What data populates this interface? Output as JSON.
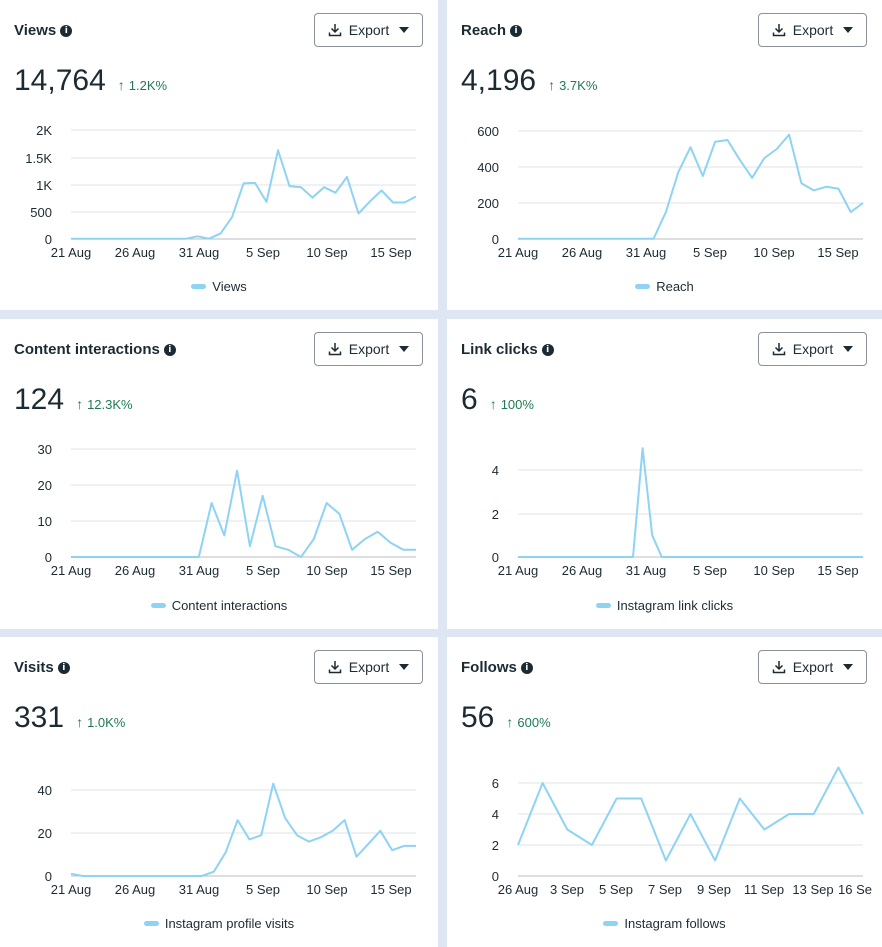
{
  "export_label": "Export",
  "series_color": "#8fd3f4",
  "positive_color": "#1f7a52",
  "cards": [
    {
      "title": "Views",
      "value": "14,764",
      "change": "1.2K%",
      "legend": "Views",
      "chart_data": {
        "type": "line",
        "x_ticks": [
          "21 Aug",
          "26 Aug",
          "31 Aug",
          "5 Sep",
          "10 Sep",
          "15 Sep"
        ],
        "y_ticks": [
          "0",
          "500",
          "1K",
          "1.5K",
          "2K"
        ],
        "ylim": [
          0,
          2000
        ],
        "series": [
          {
            "name": "Views",
            "values": [
              5,
              5,
              5,
              5,
              5,
              5,
              5,
              5,
              5,
              5,
              5,
              50,
              5,
              100,
              400,
              1020,
              1030,
              680,
              1630,
              970,
              950,
              760,
              950,
              850,
              1140,
              470,
              690,
              890,
              670,
              670,
              780
            ]
          }
        ]
      }
    },
    {
      "title": "Reach",
      "value": "4,196",
      "change": "3.7K%",
      "legend": "Reach",
      "chart_data": {
        "type": "line",
        "x_ticks": [
          "21 Aug",
          "26 Aug",
          "31 Aug",
          "5 Sep",
          "10 Sep",
          "15 Sep"
        ],
        "y_ticks": [
          "0",
          "200",
          "400",
          "600"
        ],
        "ylim": [
          0,
          600
        ],
        "series": [
          {
            "name": "Reach",
            "values": [
              1,
              1,
              1,
              1,
              1,
              1,
              1,
              1,
              1,
              1,
              1,
              1,
              150,
              370,
              510,
              350,
              540,
              550,
              440,
              340,
              450,
              500,
              580,
              310,
              270,
              290,
              280,
              150,
              200
            ]
          }
        ]
      }
    },
    {
      "title": "Content interactions",
      "value": "124",
      "change": "12.3K%",
      "legend": "Content interactions",
      "chart_data": {
        "type": "line",
        "x_ticks": [
          "21 Aug",
          "26 Aug",
          "31 Aug",
          "5 Sep",
          "10 Sep",
          "15 Sep"
        ],
        "y_ticks": [
          "0",
          "10",
          "20",
          "30"
        ],
        "ylim": [
          0,
          30
        ],
        "series": [
          {
            "name": "Content interactions",
            "values": [
              0,
              0,
              0,
              0,
              0,
              0,
              0,
              0,
              0,
              0,
              0,
              15,
              6,
              24,
              3,
              17,
              3,
              2,
              0,
              5,
              15,
              12,
              2,
              5,
              7,
              4,
              2,
              2
            ]
          }
        ]
      }
    },
    {
      "title": "Link clicks",
      "value": "6",
      "change": "100%",
      "legend": "Instagram link clicks",
      "chart_data": {
        "type": "line",
        "x_ticks": [
          "21 Aug",
          "26 Aug",
          "31 Aug",
          "5 Sep",
          "10 Sep",
          "15 Sep"
        ],
        "y_ticks": [
          "0",
          "2",
          "4"
        ],
        "ylim": [
          0,
          5
        ],
        "series": [
          {
            "name": "Instagram link clicks",
            "values": [
              0,
              0,
              0,
              0,
              0,
              0,
              0,
              0,
              0,
              0,
              0,
              0,
              0,
              5,
              1,
              0,
              0,
              0,
              0,
              0,
              0,
              0,
              0,
              0,
              0,
              0,
              0,
              0,
              0,
              0,
              0,
              0,
              0,
              0,
              0,
              0,
              0
            ]
          }
        ]
      }
    },
    {
      "title": "Visits",
      "value": "331",
      "change": "1.0K%",
      "legend": "Instagram profile visits",
      "chart_data": {
        "type": "line",
        "x_ticks": [
          "21 Aug",
          "26 Aug",
          "31 Aug",
          "5 Sep",
          "10 Sep",
          "15 Sep"
        ],
        "y_ticks": [
          "0",
          "20",
          "40"
        ],
        "ylim": [
          0,
          50
        ],
        "series": [
          {
            "name": "Instagram profile visits",
            "values": [
              1,
              0,
              0,
              0,
              0,
              0,
              0,
              0,
              0,
              0,
              0,
              0,
              2,
              11,
              26,
              17,
              19,
              43,
              27,
              19,
              16,
              18,
              21,
              26,
              9,
              15,
              21,
              12,
              14,
              14
            ]
          }
        ]
      }
    },
    {
      "title": "Follows",
      "value": "56",
      "change": "600%",
      "legend": "Instagram follows",
      "chart_data": {
        "type": "line",
        "x_ticks": [
          "26 Aug",
          "3 Sep",
          "5 Sep",
          "7 Sep",
          "9 Sep",
          "11 Sep",
          "13 Sep",
          "16 Se"
        ],
        "y_ticks": [
          "0",
          "2",
          "4",
          "6"
        ],
        "ylim": [
          0,
          7
        ],
        "series": [
          {
            "name": "Instagram follows",
            "values": [
              2,
              6,
              3,
              2,
              5,
              5,
              1,
              4,
              1,
              5,
              3,
              4,
              4,
              7,
              4
            ]
          }
        ]
      }
    }
  ]
}
